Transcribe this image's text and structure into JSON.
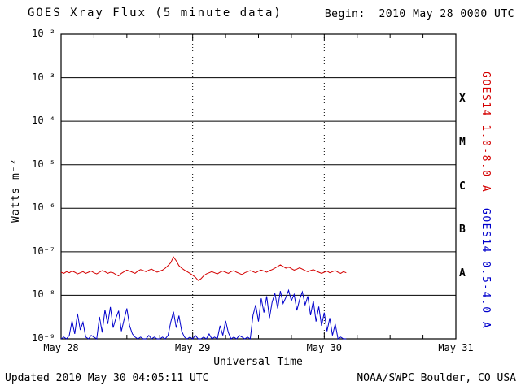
{
  "header": {
    "title": "GOES Xray Flux (5 minute data)",
    "begin": "Begin:  2010 May 28 0000 UTC"
  },
  "footer": {
    "updated": "Updated 2010 May 30 04:05:11 UTC",
    "credit": "NOAA/SWPC Boulder, CO USA"
  },
  "chart_data": {
    "type": "line",
    "title": "GOES Xray Flux (5 minute data)",
    "xlabel": "Universal Time",
    "ylabel": "Watts m⁻²",
    "y_scale": "log10",
    "y_log_range": [
      -9,
      -2
    ],
    "y_tick_labels": [
      "10⁻²",
      "10⁻³",
      "10⁻⁴",
      "10⁻⁵",
      "10⁻⁶",
      "10⁻⁷",
      "10⁻⁸",
      "10⁻⁹"
    ],
    "x_range_hours": [
      0,
      72
    ],
    "x_tick_labels": [
      "May 28",
      "May 29",
      "May 30",
      "May 31"
    ],
    "grid": {
      "horizontal_decade_lines": true,
      "vertical_day_lines_dotted": true
    },
    "legend_position": "right-rotated",
    "flux_classes": [
      {
        "label": "X",
        "log_center": -3.5
      },
      {
        "label": "M",
        "log_center": -4.5
      },
      {
        "label": "C",
        "log_center": -5.5
      },
      {
        "label": "B",
        "log_center": -6.5
      },
      {
        "label": "A",
        "log_center": -7.5
      }
    ],
    "series": [
      {
        "name": "GOES14 1.0-8.0 A",
        "color": "#d40000",
        "start_hour": 0,
        "step_hours": 0.5,
        "scale": 1e-08,
        "unit": "W/m^2 (values x 1e-8)",
        "values": [
          3.4,
          3.2,
          3.5,
          3.3,
          3.6,
          3.4,
          3.1,
          3.3,
          3.5,
          3.2,
          3.4,
          3.6,
          3.3,
          3.1,
          3.4,
          3.7,
          3.5,
          3.2,
          3.4,
          3.3,
          3.0,
          2.8,
          3.2,
          3.5,
          3.8,
          3.6,
          3.4,
          3.2,
          3.6,
          3.9,
          3.7,
          3.5,
          3.8,
          4.0,
          3.7,
          3.4,
          3.6,
          3.8,
          4.2,
          4.8,
          5.6,
          7.6,
          6.2,
          4.8,
          4.2,
          3.8,
          3.5,
          3.2,
          2.9,
          2.6,
          2.2,
          2.4,
          2.8,
          3.1,
          3.3,
          3.5,
          3.3,
          3.1,
          3.4,
          3.6,
          3.4,
          3.2,
          3.5,
          3.7,
          3.4,
          3.2,
          3.0,
          3.3,
          3.5,
          3.7,
          3.5,
          3.3,
          3.6,
          3.8,
          3.6,
          3.4,
          3.7,
          3.9,
          4.2,
          4.6,
          5.0,
          4.6,
          4.2,
          4.5,
          4.1,
          3.8,
          4.0,
          4.3,
          4.0,
          3.7,
          3.5,
          3.7,
          3.9,
          3.6,
          3.4,
          3.2,
          3.4,
          3.6,
          3.3,
          3.5,
          3.7,
          3.4,
          3.2,
          3.5,
          3.3
        ]
      },
      {
        "name": "GOES14 0.5-4.0 A",
        "color": "#0000cc",
        "start_hour": 0,
        "step_hours": 0.5,
        "scale": 1e-09,
        "unit": "W/m^2 (values x 1e-9)",
        "values": [
          1.0,
          1.1,
          1.0,
          1.2,
          2.6,
          1.3,
          3.8,
          1.6,
          2.4,
          1.1,
          1.0,
          1.2,
          1.1,
          1.0,
          3.2,
          1.4,
          4.6,
          2.2,
          5.4,
          1.8,
          3.0,
          4.4,
          1.5,
          2.8,
          5.0,
          2.0,
          1.3,
          1.1,
          1.0,
          1.1,
          1.0,
          1.0,
          1.2,
          1.0,
          1.1,
          1.0,
          1.0,
          1.1,
          1.0,
          1.2,
          2.4,
          4.2,
          1.8,
          3.4,
          1.5,
          1.1,
          1.0,
          1.1,
          1.0,
          1.2,
          1.0,
          1.0,
          1.1,
          1.0,
          1.3,
          1.0,
          1.1,
          1.0,
          2.0,
          1.2,
          2.6,
          1.4,
          1.0,
          1.1,
          1.0,
          1.2,
          1.1,
          1.0,
          1.1,
          1.0,
          3.5,
          6.0,
          2.5,
          8.5,
          4.0,
          9.5,
          3.0,
          7.0,
          11.0,
          5.0,
          12.5,
          6.5,
          9.0,
          13.0,
          7.5,
          10.5,
          4.5,
          8.0,
          12.0,
          6.0,
          9.5,
          3.5,
          7.5,
          2.5,
          5.5,
          2.0,
          4.0,
          1.5,
          3.0,
          1.2,
          2.2,
          1.0,
          1.1,
          1.0,
          1.0
        ]
      }
    ]
  }
}
